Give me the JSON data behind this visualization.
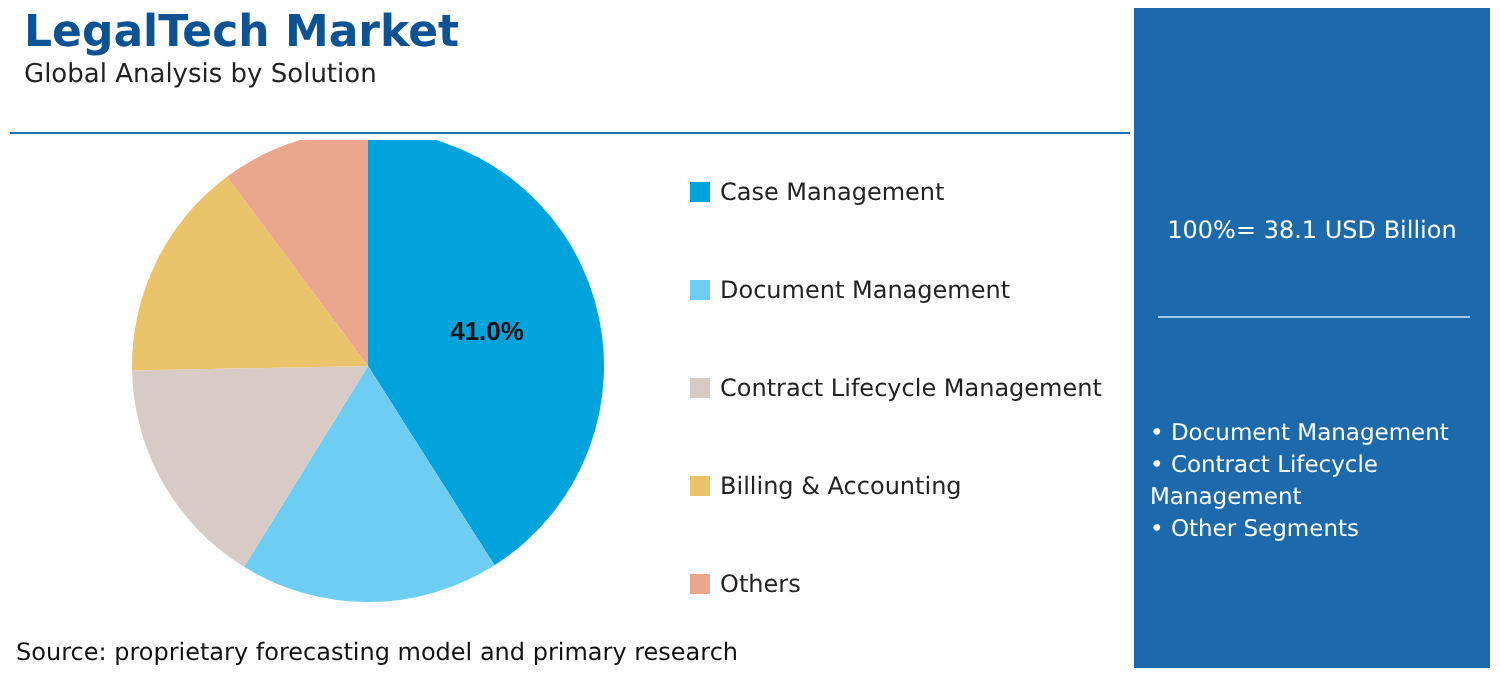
{
  "chart_data": {
    "type": "pie",
    "title": "LegalTech Market",
    "subtitle": "Global Analysis by Solution",
    "categories": [
      "Case Management",
      "Document Management",
      "Contract Lifecycle Management",
      "Billing & Accounting",
      "Others"
    ],
    "values": [
      41.0,
      17.8,
      15.9,
      15.1,
      10.2
    ],
    "colors": [
      "#00a3dc",
      "#6ecdf2",
      "#d8cbc6",
      "#eac36a",
      "#eba68e"
    ],
    "value_labels": [
      "41.0%",
      null,
      null,
      null,
      null
    ],
    "legend": "right",
    "annotations": [
      "Source: proprietary forecasting model and primary research",
      "100%= 38.1 USD Billion",
      "• Document Management",
      "• Contract Lifecycle Management",
      "• Other Segments"
    ]
  }
}
